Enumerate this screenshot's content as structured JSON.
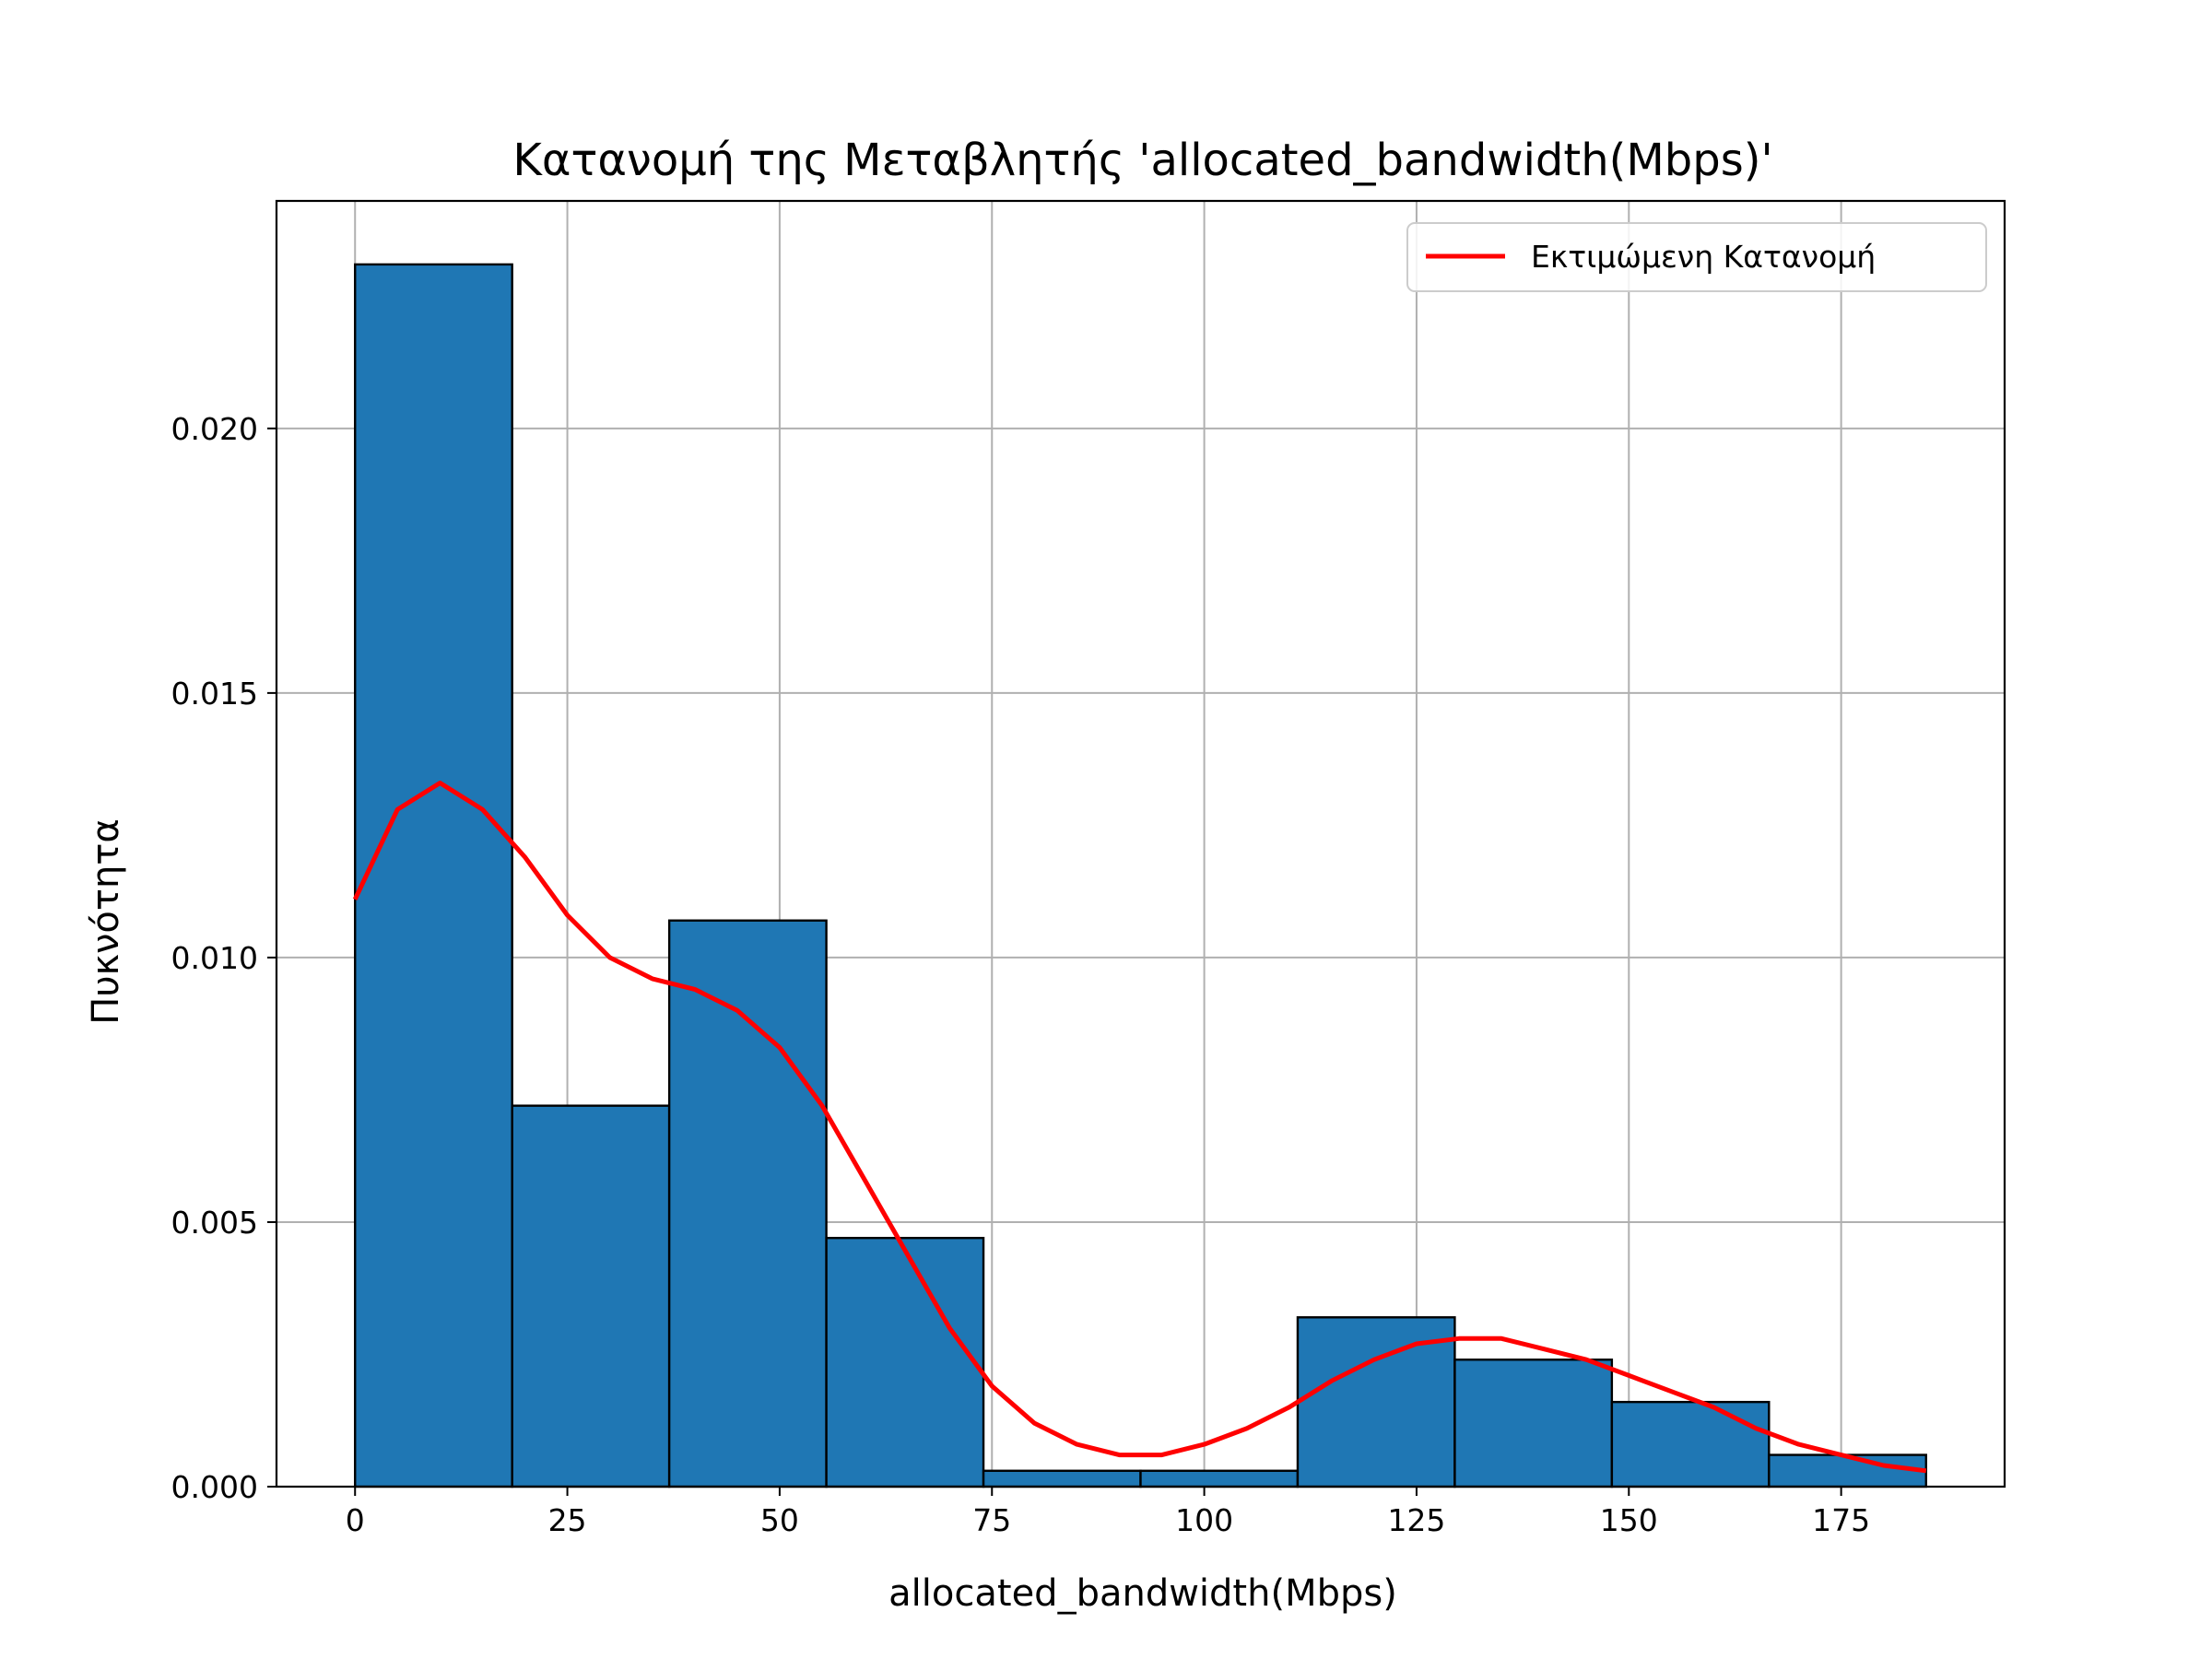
{
  "chart_data": {
    "type": "histogram",
    "title": "Κατανομή της Μεταβλητής 'allocated_bandwidth(Mbps)'",
    "xlabel": "allocated_bandwidth(Mbps)",
    "ylabel": "Πυκνότητα",
    "xlim": [
      -9.25,
      194.25
    ],
    "ylim": [
      0,
      0.0243
    ],
    "xticks": [
      0,
      25,
      50,
      75,
      100,
      125,
      150,
      175
    ],
    "xtick_labels": [
      "0",
      "25",
      "50",
      "75",
      "100",
      "125",
      "150",
      "175"
    ],
    "yticks": [
      0.0,
      0.005,
      0.01,
      0.015,
      0.02
    ],
    "ytick_labels": [
      "0.000",
      "0.005",
      "0.010",
      "0.015",
      "0.020"
    ],
    "grid": true,
    "legend_position": "top-right",
    "colors": {
      "bars": "#1f77b4",
      "bar_edge": "#000000",
      "kde": "#ff0000",
      "grid": "#b0b0b0"
    },
    "bins": [
      {
        "x0": 0.0,
        "x1": 18.5,
        "density": 0.0231
      },
      {
        "x0": 18.5,
        "x1": 37.0,
        "density": 0.0072
      },
      {
        "x0": 37.0,
        "x1": 55.5,
        "density": 0.0107
      },
      {
        "x0": 55.5,
        "x1": 74.0,
        "density": 0.0047
      },
      {
        "x0": 74.0,
        "x1": 92.5,
        "density": 0.0003
      },
      {
        "x0": 92.5,
        "x1": 111.0,
        "density": 0.0003
      },
      {
        "x0": 111.0,
        "x1": 129.5,
        "density": 0.0032
      },
      {
        "x0": 129.5,
        "x1": 148.0,
        "density": 0.0024
      },
      {
        "x0": 148.0,
        "x1": 166.5,
        "density": 0.0016
      },
      {
        "x0": 166.5,
        "x1": 185.0,
        "density": 0.0006
      }
    ],
    "series": [
      {
        "name": "Εκτιμώμενη Κατανομή",
        "x": [
          0,
          5,
          10,
          15,
          20,
          25,
          30,
          35,
          40,
          45,
          50,
          55,
          60,
          65,
          70,
          75,
          80,
          85,
          90,
          95,
          100,
          105,
          110,
          115,
          120,
          125,
          130,
          135,
          140,
          145,
          150,
          155,
          160,
          165,
          170,
          175,
          180,
          185
        ],
        "y": [
          0.0111,
          0.0128,
          0.0133,
          0.0128,
          0.0119,
          0.0108,
          0.01,
          0.0096,
          0.0094,
          0.009,
          0.0083,
          0.0072,
          0.0058,
          0.0044,
          0.003,
          0.0019,
          0.0012,
          0.0008,
          0.0006,
          0.0006,
          0.0008,
          0.0011,
          0.0015,
          0.002,
          0.0024,
          0.0027,
          0.0028,
          0.0028,
          0.0026,
          0.0024,
          0.0021,
          0.0018,
          0.0015,
          0.0011,
          0.0008,
          0.0006,
          0.0004,
          0.0003
        ]
      }
    ]
  }
}
